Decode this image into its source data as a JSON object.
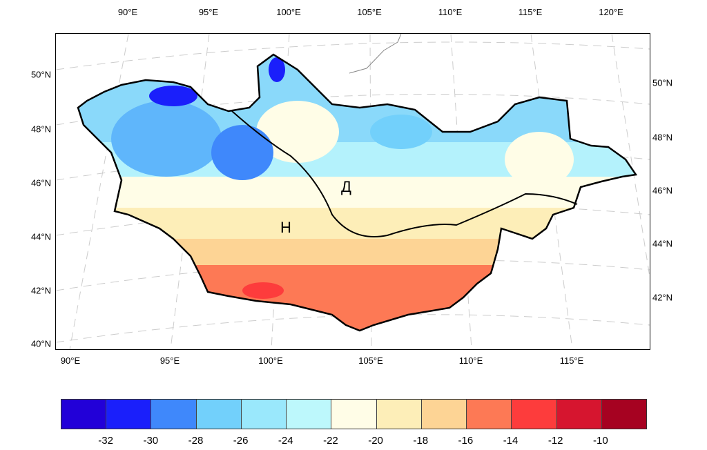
{
  "map": {
    "top_lon_labels": [
      "90°E",
      "95°E",
      "100°E",
      "105°E",
      "110°E",
      "115°E",
      "120°E"
    ],
    "bottom_lon_labels": [
      "90°E",
      "95°E",
      "100°E",
      "105°E",
      "110°E",
      "115°E"
    ],
    "left_lat_labels": [
      "50°N",
      "48°N",
      "46°N",
      "44°N",
      "42°N",
      "40°N"
    ],
    "right_lat_labels": [
      "50°N",
      "48°N",
      "46°N",
      "44°N",
      "42°N"
    ],
    "region_labels": [
      "Д",
      "Н"
    ]
  },
  "colorbar": {
    "labels": [
      "-32",
      "-30",
      "-28",
      "-26",
      "-24",
      "-22",
      "-20",
      "-18",
      "-16",
      "-14",
      "-12",
      "-10"
    ],
    "colors": [
      "#2200d8",
      "#1a1ffb",
      "#3f88fb",
      "#72d0fb",
      "#9ae8fc",
      "#bdf8fc",
      "#fffde7",
      "#fdeeb8",
      "#fdd495",
      "#fd7955",
      "#fd3c3c",
      "#d6152f",
      "#a60221"
    ]
  }
}
